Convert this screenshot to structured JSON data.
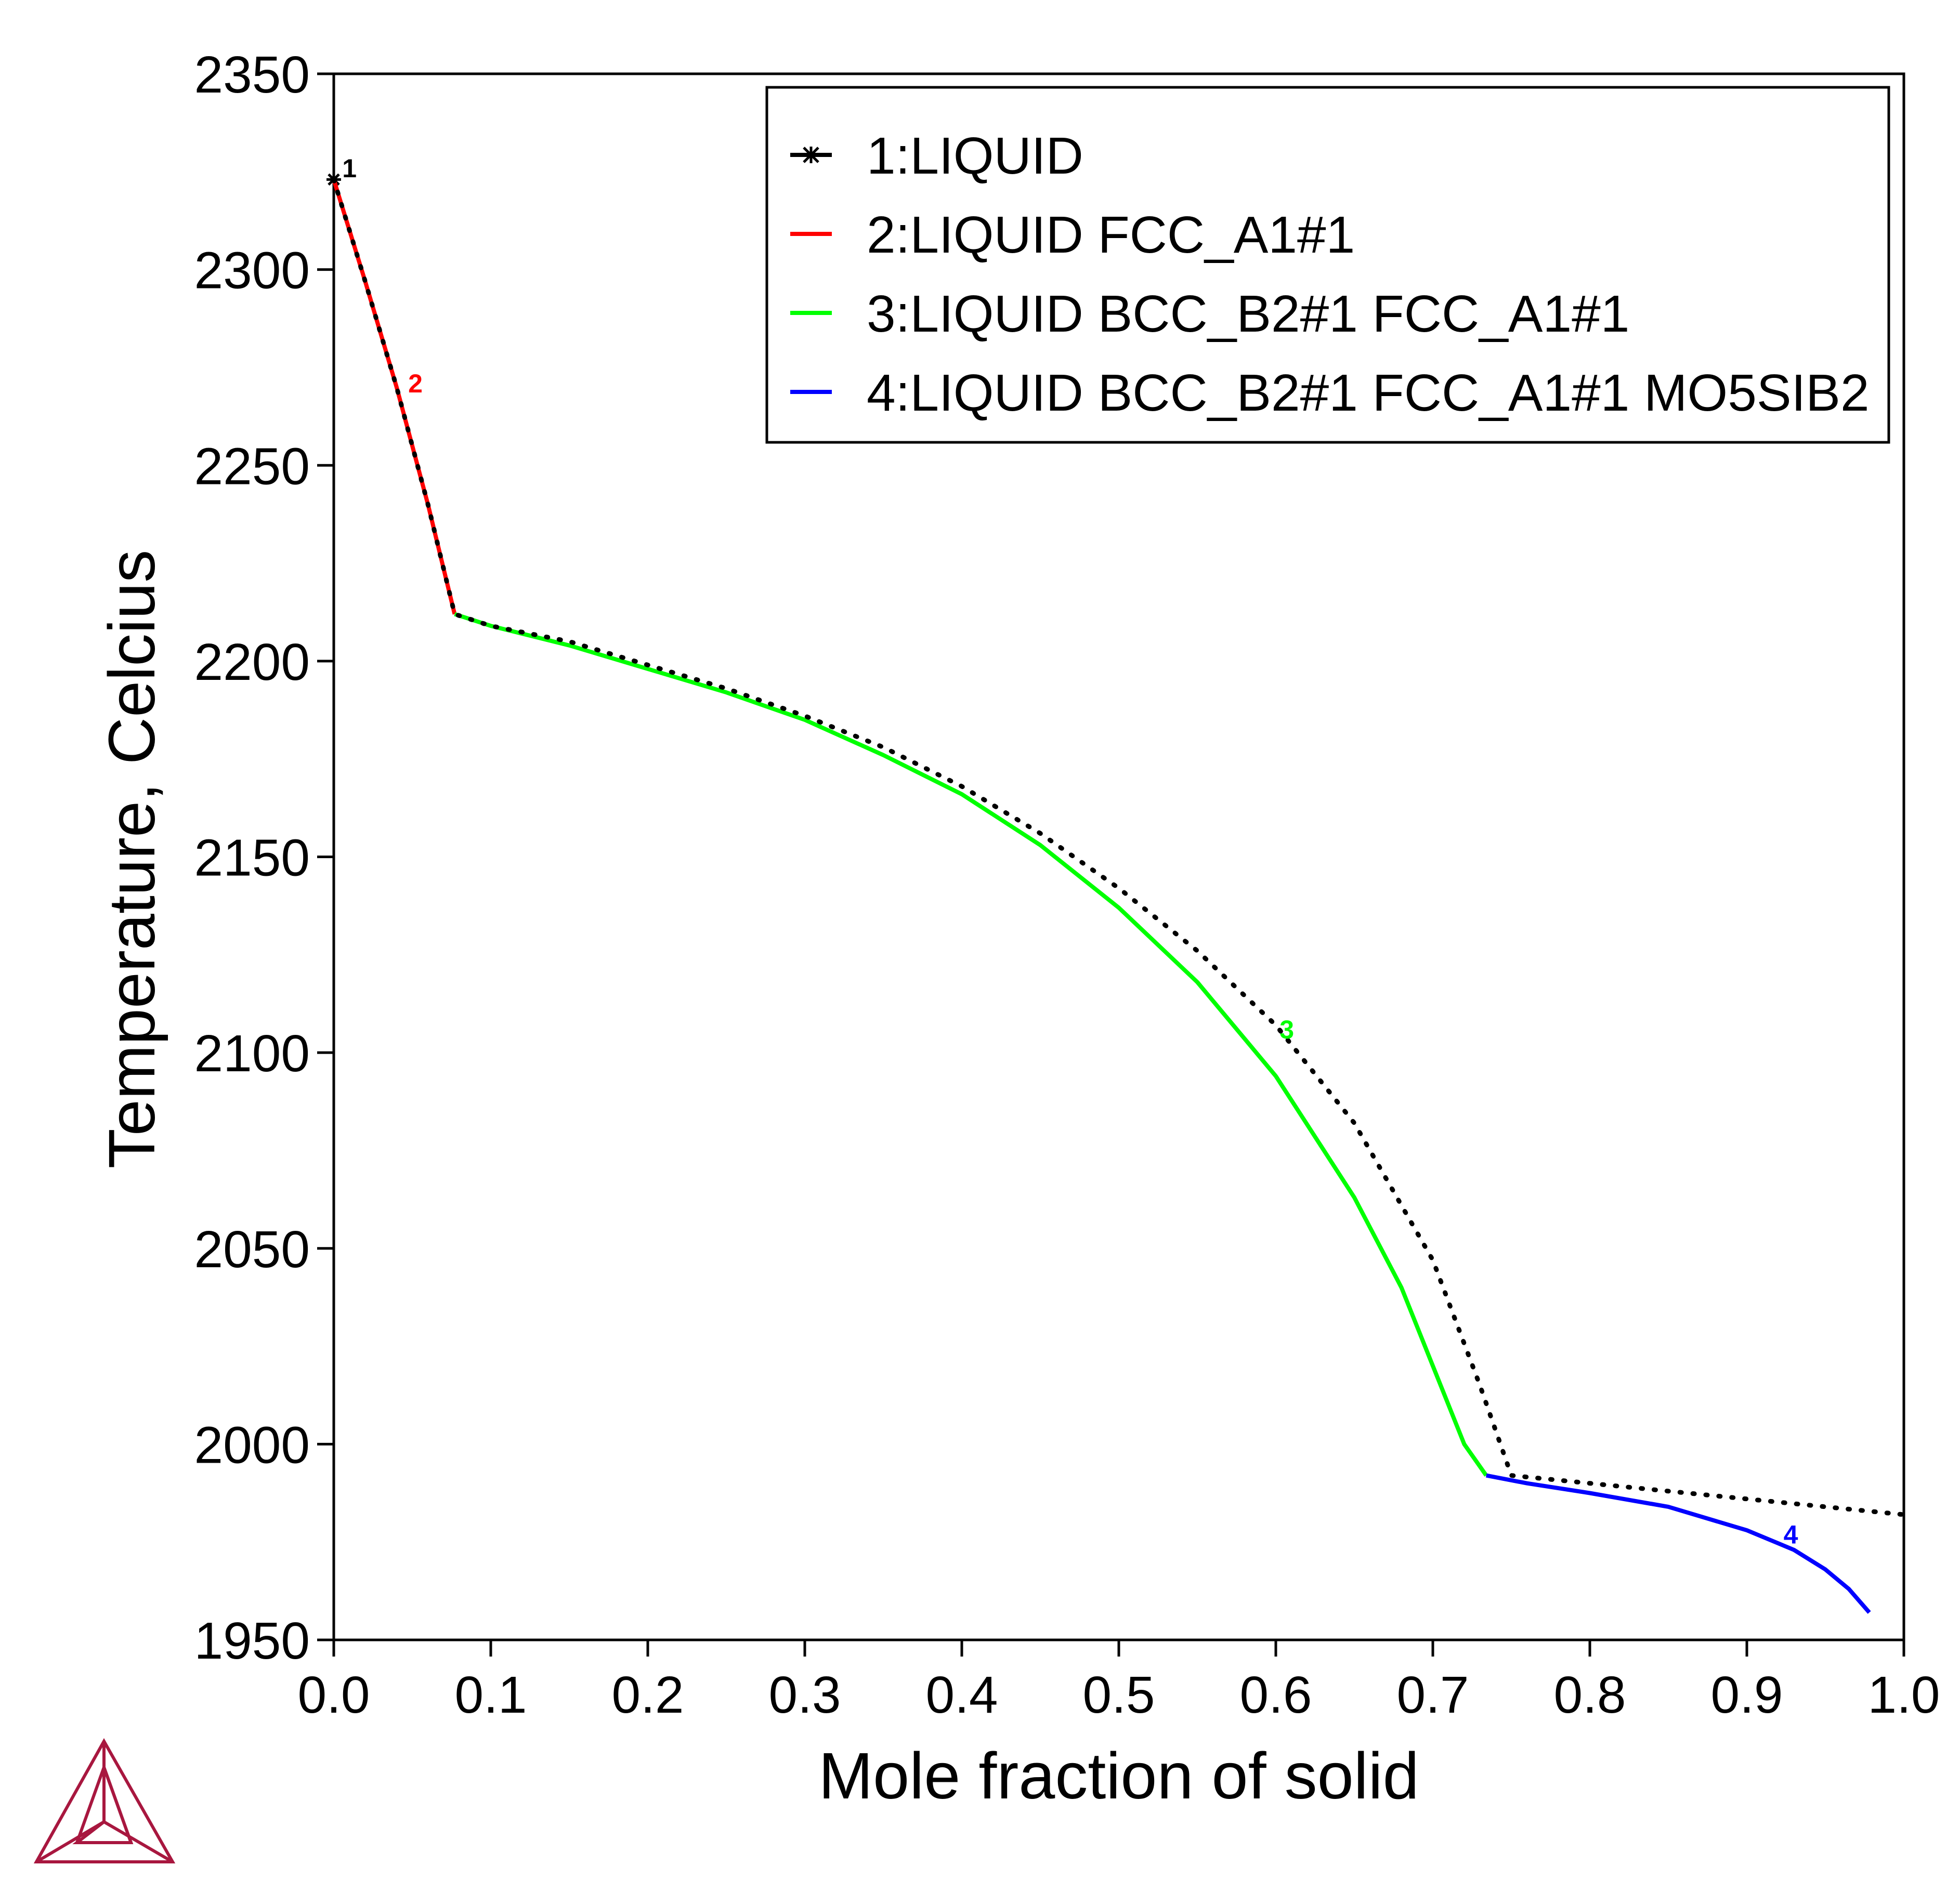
{
  "chart_data": {
    "type": "line",
    "xlabel": "Mole fraction of solid",
    "ylabel": "Temperature, Celcius",
    "xlim": [
      0.0,
      1.0
    ],
    "ylim": [
      1950,
      2350
    ],
    "x_ticks": [
      "0.0",
      "0.1",
      "0.2",
      "0.3",
      "0.4",
      "0.5",
      "0.6",
      "0.7",
      "0.8",
      "0.9",
      "1.0"
    ],
    "y_ticks": [
      "1950",
      "2000",
      "2050",
      "2100",
      "2150",
      "2200",
      "2250",
      "2300",
      "2350"
    ],
    "grid": false,
    "legend_position": "top-right",
    "series": [
      {
        "name": "1:LIQUID",
        "label": "1",
        "color": "#000000",
        "marker": "star",
        "points": [
          [
            0.0,
            2323
          ],
          [
            0.002,
            2323
          ]
        ],
        "label_at": [
          0.01,
          2326
        ]
      },
      {
        "name": "2:LIQUID FCC_A1#1",
        "label": "2",
        "color": "#ff0000",
        "points": [
          [
            0.0,
            2323
          ],
          [
            0.02,
            2297
          ],
          [
            0.04,
            2270
          ],
          [
            0.06,
            2240
          ],
          [
            0.077,
            2212
          ]
        ],
        "label_at": [
          0.052,
          2271
        ]
      },
      {
        "name": "3:LIQUID BCC_B2#1 FCC_A1#1",
        "label": "3",
        "color": "#00ff00",
        "points": [
          [
            0.077,
            2212
          ],
          [
            0.1,
            2209
          ],
          [
            0.15,
            2204
          ],
          [
            0.2,
            2198
          ],
          [
            0.25,
            2192
          ],
          [
            0.3,
            2185
          ],
          [
            0.35,
            2176
          ],
          [
            0.4,
            2166
          ],
          [
            0.45,
            2153
          ],
          [
            0.5,
            2137
          ],
          [
            0.55,
            2118
          ],
          [
            0.6,
            2094
          ],
          [
            0.65,
            2063
          ],
          [
            0.68,
            2040
          ],
          [
            0.7,
            2020
          ],
          [
            0.72,
            2000
          ],
          [
            0.734,
            1992
          ]
        ],
        "label_at": [
          0.607,
          2106
        ]
      },
      {
        "name": "4:LIQUID BCC_B2#1 FCC_A1#1 MO5SIB2",
        "label": "4",
        "color": "#0000ff",
        "points": [
          [
            0.734,
            1992
          ],
          [
            0.76,
            1990
          ],
          [
            0.8,
            1987.5
          ],
          [
            0.85,
            1984
          ],
          [
            0.9,
            1978
          ],
          [
            0.93,
            1973
          ],
          [
            0.95,
            1968
          ],
          [
            0.965,
            1963
          ],
          [
            0.978,
            1957
          ]
        ],
        "label_at": [
          0.928,
          1977
        ]
      }
    ],
    "scheil_dotted": {
      "color": "#000000",
      "points": [
        [
          0.0,
          2323
        ],
        [
          0.02,
          2297
        ],
        [
          0.04,
          2270
        ],
        [
          0.06,
          2240
        ],
        [
          0.077,
          2212
        ],
        [
          0.1,
          2209
        ],
        [
          0.15,
          2205
        ],
        [
          0.2,
          2199
        ],
        [
          0.25,
          2193
        ],
        [
          0.3,
          2186
        ],
        [
          0.35,
          2178
        ],
        [
          0.4,
          2168
        ],
        [
          0.45,
          2156
        ],
        [
          0.5,
          2142
        ],
        [
          0.55,
          2126
        ],
        [
          0.6,
          2107
        ],
        [
          0.65,
          2082
        ],
        [
          0.7,
          2047
        ],
        [
          0.73,
          2015
        ],
        [
          0.75,
          1992
        ],
        [
          0.8,
          1990
        ],
        [
          0.85,
          1988
        ],
        [
          0.9,
          1986
        ],
        [
          0.95,
          1984
        ],
        [
          1.0,
          1982
        ]
      ]
    }
  }
}
